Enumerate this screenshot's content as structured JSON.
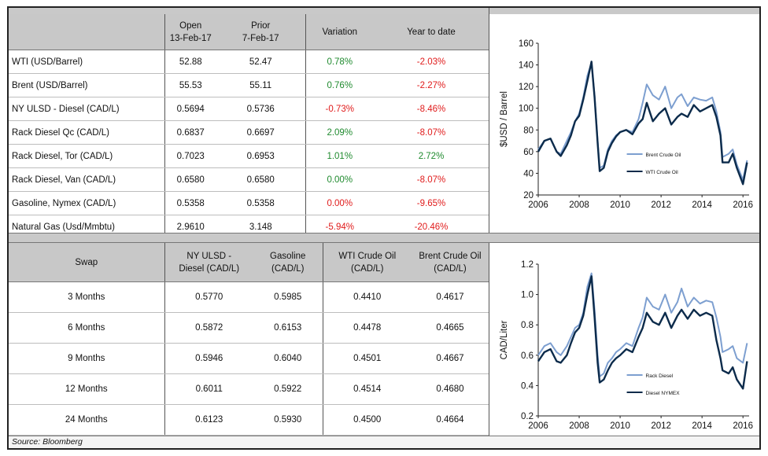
{
  "prices": {
    "headers": {
      "open": [
        "Open",
        "13-Feb-17"
      ],
      "prior": [
        "Prior",
        "7-Feb-17"
      ],
      "variation": "Variation",
      "ytd": "Year to date"
    },
    "rows": [
      {
        "label": "WTI (USD/Barrel)",
        "open": "52.88",
        "prior": "52.47",
        "variation": "0.78%",
        "ytd": "-2.03%"
      },
      {
        "label": "Brent (USD/Barrel)",
        "open": "55.53",
        "prior": "55.11",
        "variation": "0.76%",
        "ytd": "-2.27%"
      },
      {
        "label": "NY ULSD - Diesel (CAD/L)",
        "open": "0.5694",
        "prior": "0.5736",
        "variation": "-0.73%",
        "ytd": "-8.46%"
      },
      {
        "label": "Rack Diesel Qc (CAD/L)",
        "open": "0.6837",
        "prior": "0.6697",
        "variation": "2.09%",
        "ytd": "-8.07%"
      },
      {
        "label": "Rack Diesel, Tor (CAD/L)",
        "open": "0.7023",
        "prior": "0.6953",
        "variation": "1.01%",
        "ytd": "2.72%"
      },
      {
        "label": "Rack Diesel, Van (CAD/L)",
        "open": "0.6580",
        "prior": "0.6580",
        "variation": "0.00%",
        "ytd": "-8.07%"
      },
      {
        "label": "Gasoline, Nymex (CAD/L)",
        "open": "0.5358",
        "prior": "0.5358",
        "variation": "0.00%",
        "ytd": "-9.65%"
      },
      {
        "label": "Natural Gas (Usd/Mmbtu)",
        "open": "2.9610",
        "prior": "3.148",
        "variation": "-5.94%",
        "ytd": "-20.46%"
      }
    ],
    "colors": {
      "variation": [
        "pos",
        "pos",
        "neg",
        "pos",
        "pos",
        "pos",
        "neg",
        "neg"
      ],
      "ytd": [
        "neg",
        "neg",
        "neg",
        "neg",
        "pos",
        "neg",
        "neg",
        "neg"
      ]
    }
  },
  "swap": {
    "headers": {
      "swap": "Swap",
      "ulsd": [
        "NY ULSD -",
        "Diesel (CAD/L)"
      ],
      "gasoline": [
        "Gasoline",
        "(CAD/L)"
      ],
      "wti": [
        "WTI Crude Oil",
        "(CAD/L)"
      ],
      "brent": [
        "Brent Crude Oil",
        "(CAD/L)"
      ]
    },
    "rows": [
      {
        "term": "3 Months",
        "ulsd": "0.5770",
        "gasoline": "0.5985",
        "wti": "0.4410",
        "brent": "0.4617"
      },
      {
        "term": "6 Months",
        "ulsd": "0.5872",
        "gasoline": "0.6153",
        "wti": "0.4478",
        "brent": "0.4665"
      },
      {
        "term": "9 Months",
        "ulsd": "0.5946",
        "gasoline": "0.6040",
        "wti": "0.4501",
        "brent": "0.4667"
      },
      {
        "term": "12 Months",
        "ulsd": "0.6011",
        "gasoline": "0.5922",
        "wti": "0.4514",
        "brent": "0.4680"
      },
      {
        "term": "24 Months",
        "ulsd": "0.6123",
        "gasoline": "0.5930",
        "wti": "0.4500",
        "brent": "0.4664"
      }
    ]
  },
  "source": "Source: Bloomberg",
  "chart_data": [
    {
      "type": "line",
      "ylabel": "$USD / Barrel",
      "xlim": [
        2006,
        2016.3
      ],
      "ylim": [
        20,
        160
      ],
      "xticks": [
        "2006",
        "2008",
        "2010",
        "2012",
        "2014",
        "2016"
      ],
      "yticks": [
        "20",
        "40",
        "60",
        "80",
        "100",
        "120",
        "140",
        "160"
      ],
      "legend": "bottom-right",
      "series": [
        {
          "name": "Brent Crude Oil",
          "color": "#7d9fd0",
          "x": [
            2006.0,
            2006.3,
            2006.6,
            2006.9,
            2007.1,
            2007.4,
            2007.6,
            2007.8,
            2008.0,
            2008.2,
            2008.4,
            2008.6,
            2008.75,
            2008.9,
            2009.0,
            2009.2,
            2009.4,
            2009.6,
            2009.8,
            2010.0,
            2010.3,
            2010.6,
            2010.9,
            2011.1,
            2011.3,
            2011.6,
            2011.9,
            2012.2,
            2012.5,
            2012.8,
            2013.0,
            2013.3,
            2013.6,
            2013.9,
            2014.2,
            2014.5,
            2014.7,
            2014.9,
            2015.0,
            2015.3,
            2015.5,
            2015.7,
            2016.0,
            2016.2
          ],
          "y": [
            62,
            70,
            72,
            60,
            58,
            70,
            78,
            88,
            95,
            110,
            130,
            142,
            112,
            70,
            45,
            47,
            62,
            70,
            75,
            78,
            80,
            78,
            90,
            105,
            122,
            112,
            108,
            120,
            100,
            110,
            113,
            102,
            110,
            108,
            107,
            110,
            97,
            78,
            55,
            58,
            62,
            48,
            34,
            52
          ]
        },
        {
          "name": "WTI Crude Oil",
          "color": "#0c2b4b",
          "x": [
            2006.0,
            2006.3,
            2006.6,
            2006.9,
            2007.1,
            2007.4,
            2007.6,
            2007.8,
            2008.0,
            2008.2,
            2008.4,
            2008.6,
            2008.75,
            2008.9,
            2009.0,
            2009.2,
            2009.4,
            2009.6,
            2009.8,
            2010.0,
            2010.3,
            2010.6,
            2010.9,
            2011.1,
            2011.3,
            2011.6,
            2011.9,
            2012.2,
            2012.5,
            2012.8,
            2013.0,
            2013.3,
            2013.6,
            2013.9,
            2014.2,
            2014.5,
            2014.7,
            2014.9,
            2015.0,
            2015.3,
            2015.5,
            2015.7,
            2016.0,
            2016.2
          ],
          "y": [
            60,
            70,
            72,
            60,
            56,
            66,
            75,
            88,
            93,
            108,
            125,
            143,
            110,
            68,
            42,
            45,
            60,
            68,
            74,
            78,
            80,
            76,
            86,
            90,
            105,
            88,
            95,
            100,
            85,
            92,
            95,
            92,
            103,
            97,
            100,
            103,
            92,
            75,
            50,
            50,
            58,
            45,
            30,
            50
          ]
        }
      ]
    },
    {
      "type": "line",
      "ylabel": "CAD/Liter",
      "xlim": [
        2006,
        2016.3
      ],
      "ylim": [
        0.2,
        1.2
      ],
      "xticks": [
        "2006",
        "2008",
        "2010",
        "2012",
        "2014",
        "2016"
      ],
      "yticks": [
        "0.2",
        "0.4",
        "0.6",
        "0.8",
        "1.0",
        "1.2"
      ],
      "legend": "bottom-right",
      "series": [
        {
          "name": "Rack Diesel",
          "color": "#7d9fd0",
          "x": [
            2006.0,
            2006.3,
            2006.6,
            2006.9,
            2007.1,
            2007.4,
            2007.6,
            2007.8,
            2008.0,
            2008.2,
            2008.4,
            2008.6,
            2008.75,
            2008.9,
            2009.0,
            2009.2,
            2009.4,
            2009.6,
            2009.8,
            2010.0,
            2010.3,
            2010.6,
            2010.9,
            2011.1,
            2011.3,
            2011.6,
            2011.9,
            2012.2,
            2012.5,
            2012.8,
            2013.0,
            2013.3,
            2013.6,
            2013.9,
            2014.2,
            2014.5,
            2014.7,
            2014.9,
            2015.0,
            2015.3,
            2015.5,
            2015.7,
            2016.0,
            2016.2
          ],
          "y": [
            0.6,
            0.66,
            0.68,
            0.62,
            0.6,
            0.66,
            0.72,
            0.78,
            0.8,
            0.88,
            1.05,
            1.14,
            0.9,
            0.6,
            0.46,
            0.48,
            0.55,
            0.58,
            0.62,
            0.64,
            0.68,
            0.66,
            0.78,
            0.85,
            0.98,
            0.92,
            0.9,
            1.0,
            0.88,
            0.95,
            1.04,
            0.92,
            0.98,
            0.94,
            0.96,
            0.95,
            0.85,
            0.72,
            0.62,
            0.64,
            0.66,
            0.58,
            0.55,
            0.68
          ]
        },
        {
          "name": "Diesel NYMEX",
          "color": "#0c2b4b",
          "x": [
            2006.0,
            2006.3,
            2006.6,
            2006.9,
            2007.1,
            2007.4,
            2007.6,
            2007.8,
            2008.0,
            2008.2,
            2008.4,
            2008.6,
            2008.75,
            2008.9,
            2009.0,
            2009.2,
            2009.4,
            2009.6,
            2009.8,
            2010.0,
            2010.3,
            2010.6,
            2010.9,
            2011.1,
            2011.3,
            2011.6,
            2011.9,
            2012.2,
            2012.5,
            2012.8,
            2013.0,
            2013.3,
            2013.6,
            2013.9,
            2014.2,
            2014.5,
            2014.7,
            2014.9,
            2015.0,
            2015.3,
            2015.5,
            2015.7,
            2016.0,
            2016.2
          ],
          "y": [
            0.56,
            0.62,
            0.64,
            0.56,
            0.55,
            0.6,
            0.68,
            0.75,
            0.78,
            0.86,
            1.0,
            1.12,
            0.85,
            0.55,
            0.42,
            0.44,
            0.5,
            0.55,
            0.58,
            0.6,
            0.64,
            0.62,
            0.72,
            0.78,
            0.88,
            0.82,
            0.8,
            0.88,
            0.78,
            0.86,
            0.9,
            0.84,
            0.9,
            0.86,
            0.88,
            0.86,
            0.7,
            0.58,
            0.5,
            0.48,
            0.52,
            0.44,
            0.38,
            0.56
          ]
        }
      ]
    }
  ]
}
